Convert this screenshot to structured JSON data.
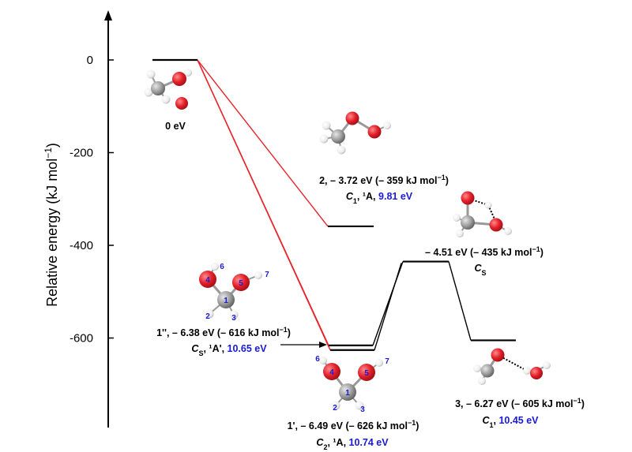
{
  "chart_data": {
    "type": "energy_profile",
    "ylabel": "Relative energy (kJ mol",
    "ylabel_sup": "−1",
    "ylabel_tail": ")",
    "ylim": [
      -760,
      100
    ],
    "yticks": [
      0,
      -200,
      -400,
      -600
    ],
    "ytick_labels": [
      "0",
      "-200",
      "-400",
      "-600"
    ],
    "levels": [
      {
        "id": "reactant",
        "energy": 0
      },
      {
        "id": "int2",
        "energy": -359
      },
      {
        "id": "int1pp",
        "energy": -616
      },
      {
        "id": "int1p",
        "energy": -626
      },
      {
        "id": "ts",
        "energy": -435
      },
      {
        "id": "prod3",
        "energy": -605
      }
    ],
    "annotations": {
      "reactant": "0 eV",
      "int2_line1": "2, – 3.72 eV (– 359 kJ mol",
      "int2_line1_sup": "−1",
      "int2_line1_tail": ")",
      "int2_line2_sym": "C",
      "int2_line2_sub": "1",
      "int2_line2_state": ", ¹A, ",
      "int2_line2_ev": "9.81 eV",
      "ts_line1": "– 4.51 eV (– 435 kJ mol",
      "ts_line1_sup": "−1",
      "ts_line1_tail": ")",
      "ts_line2_sym": "C",
      "ts_line2_sub": "S",
      "int1pp_line1": "1'', – 6.38 eV (– 616 kJ mol",
      "int1pp_line1_sup": "−1",
      "int1pp_line1_tail": ")",
      "int1pp_line2_sym": "C",
      "int1pp_line2_sub": "S",
      "int1pp_line2_state": ", ¹A', ",
      "int1pp_line2_ev": "10.65 eV",
      "int1p_line1": "1', – 6.49 eV (– 626 kJ mol",
      "int1p_line1_sup": "−1",
      "int1p_line1_tail": ")",
      "int1p_line2_sym": "C",
      "int1p_line2_sub": "2",
      "int1p_line2_state": ", ¹A, ",
      "int1p_line2_ev": "10.74 eV",
      "prod3_line1": "3, – 6.27 eV (– 605 kJ mol",
      "prod3_line1_sup": "−1",
      "prod3_line1_tail": ")",
      "prod3_line2_sym": "C",
      "prod3_line2_sub": "1",
      "prod3_line2_state": ", ",
      "prod3_line2_ev": "10.45 eV"
    },
    "atom_labels": {
      "struct1pp": [
        "1",
        "2",
        "3",
        "4",
        "5",
        "6",
        "7"
      ],
      "struct1p": [
        "1",
        "2",
        "3",
        "4",
        "5",
        "6",
        "7"
      ]
    },
    "colors": {
      "red_path": "#e8232b",
      "black_path": "#000000",
      "blue_energy": "#1a1ad8",
      "oxygen": "#e3202a",
      "carbon": "#9a9a9a",
      "hydrogen": "#f2f2f2"
    }
  }
}
